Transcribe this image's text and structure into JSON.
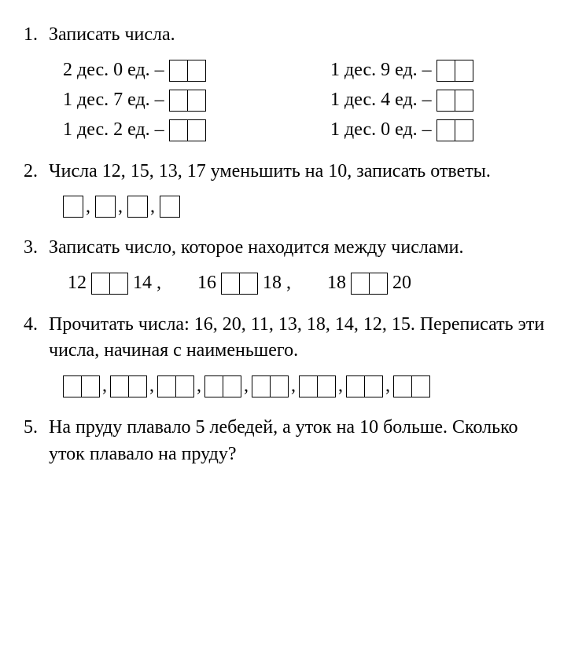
{
  "task1": {
    "number": "1.",
    "title": "Записать числа.",
    "items_left": [
      "2 дес. 0 ед. – ",
      "1 дес. 7 ед. – ",
      "1 дес. 2 ед. – "
    ],
    "items_right": [
      "1 дес. 9 ед. – ",
      "1 дес. 4 ед. – ",
      "1 дес. 0 ед. – "
    ]
  },
  "task2": {
    "number": "2.",
    "title": "Числа 12, 15, 13, 17 уменьшить на 10, записать ответы.",
    "sep": ","
  },
  "task3": {
    "number": "3.",
    "title": "Записать число, которое находится между числами.",
    "pairs": [
      {
        "a": "12",
        "b": "14"
      },
      {
        "a": "16",
        "b": "18"
      },
      {
        "a": "18",
        "b": "20"
      }
    ],
    "comma": ","
  },
  "task4": {
    "number": "4.",
    "title": "Прочитать числа: 16, 20, 11, 13, 18, 14, 12, 15. Переписать эти числа, начиная с наименьшего.",
    "sep": ","
  },
  "task5": {
    "number": "5.",
    "title": "На пруду плавало 5 лебедей, а уток на 10 больше. Сколько уток плавало на пруду?"
  }
}
